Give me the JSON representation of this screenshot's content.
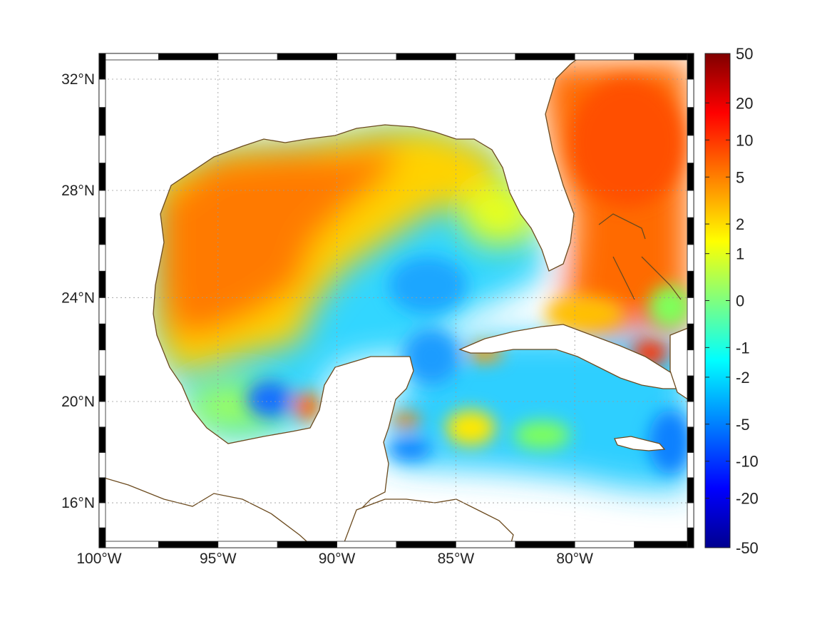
{
  "map": {
    "projection": "mercator",
    "lon_range": [
      -100,
      -75
    ],
    "lat_range": [
      14.2,
      32.9
    ],
    "lon_ticks": [
      {
        "value": -100,
        "label": "100°W"
      },
      {
        "value": -95,
        "label": "95°W"
      },
      {
        "value": -90,
        "label": "90°W"
      },
      {
        "value": -85,
        "label": "85°W"
      },
      {
        "value": -80,
        "label": "80°W"
      }
    ],
    "lat_ticks": [
      {
        "value": 32,
        "label": "32°N"
      },
      {
        "value": 28,
        "label": "28°N"
      },
      {
        "value": 24,
        "label": "24°N"
      },
      {
        "value": 20,
        "label": "20°N"
      },
      {
        "value": 16,
        "label": "16°N"
      }
    ],
    "grid": "dotted",
    "coastline_color": "#6b4a1e",
    "frame_style": "alternating black/white border",
    "colormap": "jet",
    "colorbar_ticks": [
      "50",
      "20",
      "10",
      "5",
      "2",
      "1",
      "0",
      "-1",
      "-2",
      "-5",
      "-10",
      "-20",
      "-50"
    ],
    "value_regions": [
      {
        "region": "western Gulf shelf",
        "lon": -96,
        "lat": 26,
        "value": 8
      },
      {
        "region": "northern Gulf",
        "lon": -88,
        "lat": 29,
        "value": 3
      },
      {
        "region": "eastern Gulf",
        "lon": -85,
        "lat": 27,
        "value": 2
      },
      {
        "region": "central/eastern Gulf",
        "lon": -86,
        "lat": 24.5,
        "value": -2
      },
      {
        "region": "Bay of Campeche",
        "lon": -93,
        "lat": 20,
        "value": -4
      },
      {
        "region": "Campeche coastal",
        "lon": -91.3,
        "lat": 19.7,
        "value": 6
      },
      {
        "region": "Yucatan Channel",
        "lon": -86.5,
        "lat": 22,
        "value": -2.5
      },
      {
        "region": "Atlantic off Florida",
        "lon": -77.5,
        "lat": 29.5,
        "value": 8
      },
      {
        "region": "Caribbean",
        "lon": -82,
        "lat": 18,
        "value": -2
      },
      {
        "region": "north of Hispaniola",
        "lon": -76.6,
        "lat": 21.8,
        "value": 9
      }
    ]
  }
}
